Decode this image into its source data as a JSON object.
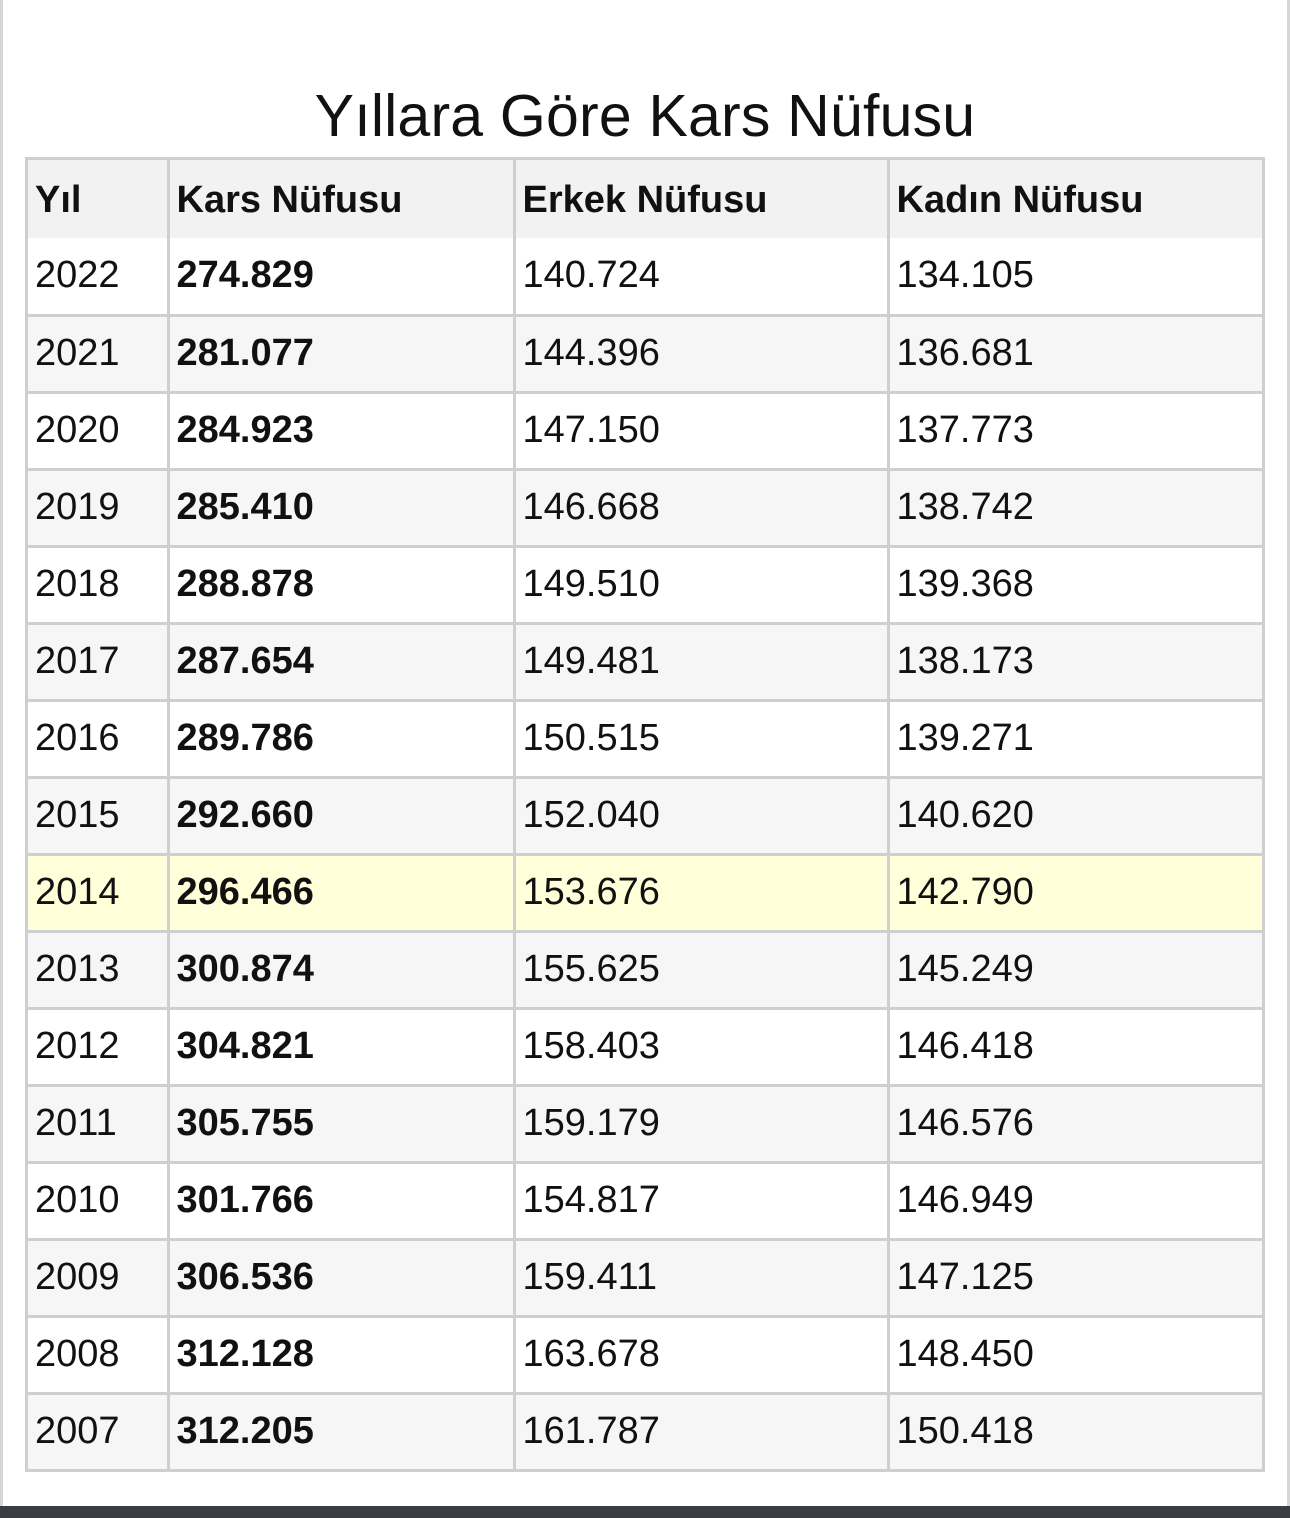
{
  "title": "Yıllara Göre Kars Nüfusu",
  "table": {
    "headers": {
      "year": "Yıl",
      "total": "Kars Nüfusu",
      "male": "Erkek Nüfusu",
      "female": "Kadın Nüfusu"
    },
    "rows": [
      {
        "year": "2022",
        "total": "274.829",
        "male": "140.724",
        "female": "134.105"
      },
      {
        "year": "2021",
        "total": "281.077",
        "male": "144.396",
        "female": "136.681"
      },
      {
        "year": "2020",
        "total": "284.923",
        "male": "147.150",
        "female": "137.773"
      },
      {
        "year": "2019",
        "total": "285.410",
        "male": "146.668",
        "female": "138.742"
      },
      {
        "year": "2018",
        "total": "288.878",
        "male": "149.510",
        "female": "139.368"
      },
      {
        "year": "2017",
        "total": "287.654",
        "male": "149.481",
        "female": "138.173"
      },
      {
        "year": "2016",
        "total": "289.786",
        "male": "150.515",
        "female": "139.271"
      },
      {
        "year": "2015",
        "total": "292.660",
        "male": "152.040",
        "female": "140.620"
      },
      {
        "year": "2014",
        "total": "296.466",
        "male": "153.676",
        "female": "142.790"
      },
      {
        "year": "2013",
        "total": "300.874",
        "male": "155.625",
        "female": "145.249"
      },
      {
        "year": "2012",
        "total": "304.821",
        "male": "158.403",
        "female": "146.418"
      },
      {
        "year": "2011",
        "total": "305.755",
        "male": "159.179",
        "female": "146.576"
      },
      {
        "year": "2010",
        "total": "301.766",
        "male": "154.817",
        "female": "146.949"
      },
      {
        "year": "2009",
        "total": "306.536",
        "male": "159.411",
        "female": "147.125"
      },
      {
        "year": "2008",
        "total": "312.128",
        "male": "163.678",
        "female": "148.450"
      },
      {
        "year": "2007",
        "total": "312.205",
        "male": "161.787",
        "female": "150.418"
      }
    ],
    "highlighted_row": 8
  },
  "colors": {
    "header_bg": "#f2f2f2",
    "alt_row_bg": "#f6f6f6",
    "highlight_bg": "#ffffd9",
    "border": "#cfcfcf"
  }
}
